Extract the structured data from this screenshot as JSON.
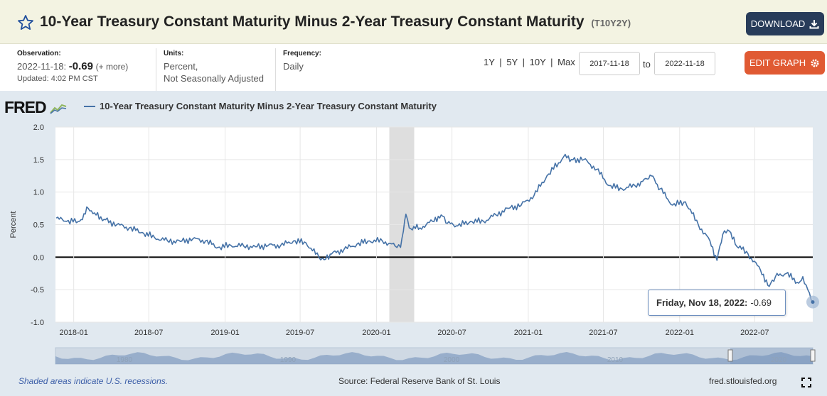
{
  "header": {
    "title": "10-Year Treasury Constant Maturity Minus 2-Year Treasury Constant Maturity",
    "series_id": "(T10Y2Y)",
    "download_label": "DOWNLOAD"
  },
  "meta": {
    "observation_label": "Observation:",
    "observation_date": "2022-11-18:",
    "observation_value": "-0.69",
    "more": "(+ more)",
    "updated": "Updated: 4:02 PM CST",
    "units_label": "Units:",
    "units_line1": "Percent,",
    "units_line2": "Not Seasonally Adjusted",
    "frequency_label": "Frequency:",
    "frequency": "Daily"
  },
  "controls": {
    "range_1y": "1Y",
    "range_5y": "5Y",
    "range_10y": "10Y",
    "range_max": "Max",
    "sep": "|",
    "start_date": "2017-11-18",
    "to": "to",
    "end_date": "2022-11-18",
    "edit_label": "EDIT GRAPH"
  },
  "chart_area": {
    "logo": "FRED",
    "legend_label": "10-Year Treasury Constant Maturity Minus 2-Year Treasury Constant Maturity",
    "tooltip_date": "Friday, Nov 18, 2022:",
    "tooltip_value": "-0.69",
    "footer_recession": "Shaded areas indicate U.S. recessions.",
    "footer_source": "Source: Federal Reserve Bank of St. Louis",
    "footer_url": "fred.stlouisfed.org"
  },
  "colors": {
    "series": "#4572a7",
    "recession": "#dedede",
    "download_bg": "#283c5a",
    "edit_bg": "#e05a33"
  },
  "chart_data": {
    "type": "line",
    "title": "10-Year Treasury Constant Maturity Minus 2-Year Treasury Constant Maturity",
    "ylabel": "Percent",
    "xlabel": "",
    "ylim": [
      -1.0,
      2.0
    ],
    "xlim": [
      "2017-11-18",
      "2022-11-18"
    ],
    "yticks": [
      "2.0",
      "1.5",
      "1.0",
      "0.5",
      "0.0",
      "-0.5",
      "-1.0"
    ],
    "xticks": [
      "2018-01",
      "2018-07",
      "2019-01",
      "2019-07",
      "2020-01",
      "2020-07",
      "2021-01",
      "2021-07",
      "2022-01",
      "2022-07"
    ],
    "navigator_labels": [
      "1980",
      "1990",
      "2000",
      "2010",
      "2020"
    ],
    "recessions": [
      {
        "start": "2020-02-01",
        "end": "2020-04-01"
      }
    ],
    "series": [
      {
        "name": "T10Y2Y",
        "points": [
          [
            "2017-11-20",
            0.6
          ],
          [
            "2017-12-15",
            0.55
          ],
          [
            "2018-01-15",
            0.55
          ],
          [
            "2018-02-05",
            0.75
          ],
          [
            "2018-02-20",
            0.68
          ],
          [
            "2018-03-15",
            0.58
          ],
          [
            "2018-04-15",
            0.5
          ],
          [
            "2018-05-15",
            0.45
          ],
          [
            "2018-06-15",
            0.38
          ],
          [
            "2018-07-15",
            0.3
          ],
          [
            "2018-08-15",
            0.25
          ],
          [
            "2018-09-15",
            0.24
          ],
          [
            "2018-10-15",
            0.28
          ],
          [
            "2018-11-15",
            0.25
          ],
          [
            "2018-12-15",
            0.15
          ],
          [
            "2019-01-15",
            0.18
          ],
          [
            "2019-02-15",
            0.17
          ],
          [
            "2019-03-15",
            0.16
          ],
          [
            "2019-04-15",
            0.18
          ],
          [
            "2019-05-15",
            0.18
          ],
          [
            "2019-06-15",
            0.25
          ],
          [
            "2019-07-15",
            0.22
          ],
          [
            "2019-08-15",
            0.0
          ],
          [
            "2019-08-28",
            -0.04
          ],
          [
            "2019-09-15",
            0.05
          ],
          [
            "2019-10-15",
            0.12
          ],
          [
            "2019-11-15",
            0.2
          ],
          [
            "2019-12-15",
            0.25
          ],
          [
            "2020-01-15",
            0.25
          ],
          [
            "2020-02-15",
            0.17
          ],
          [
            "2020-02-28",
            0.15
          ],
          [
            "2020-03-06",
            0.4
          ],
          [
            "2020-03-12",
            0.66
          ],
          [
            "2020-03-20",
            0.45
          ],
          [
            "2020-04-15",
            0.45
          ],
          [
            "2020-05-15",
            0.55
          ],
          [
            "2020-06-05",
            0.65
          ],
          [
            "2020-06-20",
            0.52
          ],
          [
            "2020-07-15",
            0.48
          ],
          [
            "2020-08-15",
            0.55
          ],
          [
            "2020-09-15",
            0.55
          ],
          [
            "2020-10-15",
            0.65
          ],
          [
            "2020-11-15",
            0.75
          ],
          [
            "2020-12-15",
            0.8
          ],
          [
            "2021-01-15",
            0.95
          ],
          [
            "2021-02-15",
            1.25
          ],
          [
            "2021-03-15",
            1.45
          ],
          [
            "2021-03-31",
            1.58
          ],
          [
            "2021-04-15",
            1.5
          ],
          [
            "2021-05-15",
            1.5
          ],
          [
            "2021-06-15",
            1.35
          ],
          [
            "2021-07-15",
            1.1
          ],
          [
            "2021-08-15",
            1.05
          ],
          [
            "2021-09-15",
            1.1
          ],
          [
            "2021-10-15",
            1.2
          ],
          [
            "2021-10-25",
            1.25
          ],
          [
            "2021-11-15",
            1.05
          ],
          [
            "2021-12-15",
            0.8
          ],
          [
            "2022-01-15",
            0.85
          ],
          [
            "2022-02-15",
            0.5
          ],
          [
            "2022-03-15",
            0.25
          ],
          [
            "2022-04-01",
            -0.05
          ],
          [
            "2022-04-15",
            0.35
          ],
          [
            "2022-05-01",
            0.4
          ],
          [
            "2022-05-15",
            0.2
          ],
          [
            "2022-06-15",
            0.05
          ],
          [
            "2022-07-15",
            -0.2
          ],
          [
            "2022-08-05",
            -0.45
          ],
          [
            "2022-08-20",
            -0.3
          ],
          [
            "2022-09-15",
            -0.25
          ],
          [
            "2022-10-15",
            -0.4
          ],
          [
            "2022-10-25",
            -0.3
          ],
          [
            "2022-11-10",
            -0.55
          ],
          [
            "2022-11-18",
            -0.69
          ]
        ]
      }
    ]
  }
}
